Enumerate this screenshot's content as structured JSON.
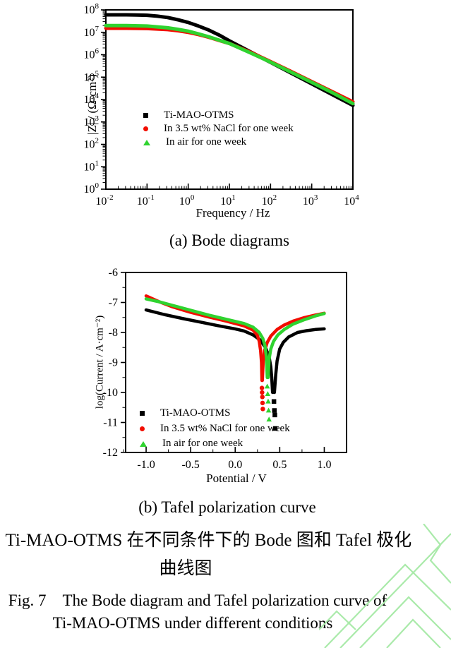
{
  "figure": {
    "caption_a": "(a) Bode diagrams",
    "caption_b": "(b) Tafel polarization curve",
    "caption_zh_line1": "图 7　Ti-MAO-OTMS 在不同条件下的 Bode 图和 Tafel 极化",
    "caption_zh_line2": "曲线图",
    "caption_en_line1": "Fig. 7　The Bode diagram and Tafel polarization curve of",
    "caption_en_line2": "Ti-MAO-OTMS under different conditions"
  },
  "legend": {
    "items": [
      {
        "label": "Ti-MAO-OTMS",
        "marker": "square",
        "color": "#000000"
      },
      {
        "label": "In 3.5 wt% NaCl for one week",
        "marker": "circle",
        "color": "#f20d00"
      },
      {
        "label": "In air for one week",
        "marker": "triangle",
        "color": "#2fd32f"
      }
    ]
  },
  "watermark": {
    "color": "#aaeaaa"
  },
  "chart_data": [
    {
      "type": "line",
      "name": "bode",
      "xlabel": "Frequency / Hz",
      "ylabel": "|Z| / (Ω·cm²)",
      "x_scale": "log",
      "y_scale": "log",
      "xlim_log": [
        -2,
        4
      ],
      "ylim_log": [
        0,
        8
      ],
      "x_ticks_exp": [
        -2,
        -1,
        0,
        1,
        2,
        3,
        4
      ],
      "y_ticks_exp": [
        0,
        1,
        2,
        3,
        4,
        5,
        6,
        7,
        8
      ],
      "series": [
        {
          "name": "Ti-MAO-OTMS",
          "color": "#000000",
          "marker": "square",
          "log_f": [
            -2,
            -1.75,
            -1.5,
            -1.25,
            -1,
            -0.75,
            -0.5,
            -0.25,
            0,
            0.25,
            0.5,
            0.75,
            1,
            1.5,
            2,
            2.5,
            3,
            3.5,
            4
          ],
          "log_z": [
            7.78,
            7.78,
            7.78,
            7.77,
            7.76,
            7.72,
            7.66,
            7.56,
            7.44,
            7.28,
            7.1,
            6.88,
            6.62,
            6.14,
            5.66,
            5.18,
            4.7,
            4.22,
            3.74
          ]
        },
        {
          "name": "In 3.5 wt% NaCl for one week",
          "color": "#f20d00",
          "marker": "circle",
          "log_f": [
            -2,
            -1.5,
            -1,
            -0.5,
            -0.25,
            0,
            0.25,
            0.5,
            0.75,
            1,
            1.5,
            2,
            2.5,
            3,
            3.5,
            4
          ],
          "log_z": [
            7.18,
            7.18,
            7.17,
            7.12,
            7.07,
            7.0,
            6.9,
            6.78,
            6.64,
            6.5,
            6.12,
            5.69,
            5.25,
            4.8,
            4.35,
            3.9
          ]
        },
        {
          "name": "In air for one week",
          "color": "#2fd32f",
          "marker": "triangle",
          "log_f": [
            -2,
            -1.5,
            -1,
            -0.5,
            -0.25,
            0,
            0.25,
            0.5,
            0.75,
            1,
            1.5,
            2,
            2.5,
            3,
            3.5,
            4
          ],
          "log_z": [
            7.3,
            7.3,
            7.28,
            7.2,
            7.13,
            7.05,
            6.93,
            6.8,
            6.65,
            6.5,
            6.09,
            5.67,
            5.22,
            4.77,
            4.31,
            3.82
          ]
        }
      ]
    },
    {
      "type": "line",
      "name": "tafel",
      "xlabel": "Potential / V",
      "ylabel": "log(Current / A·cm⁻²)",
      "xlim": [
        -1.23,
        1.25
      ],
      "ylim": [
        -12,
        -6
      ],
      "x_ticks": [
        -1.0,
        -0.5,
        0.0,
        0.5,
        1.0
      ],
      "y_ticks": [
        -6,
        -7,
        -8,
        -9,
        -10,
        -11,
        -12
      ],
      "series": [
        {
          "name": "Ti-MAO-OTMS",
          "color": "#000000",
          "marker": "square",
          "ecorr": 0.43,
          "branches": [
            {
              "x": [
                -1.0,
                -0.8,
                -0.6,
                -0.4,
                -0.2,
                0,
                0.1,
                0.2,
                0.28,
                0.34,
                0.38,
                0.4,
                0.41,
                0.42
              ],
              "y": [
                -7.25,
                -7.4,
                -7.53,
                -7.65,
                -7.77,
                -7.88,
                -7.95,
                -8.08,
                -8.25,
                -8.5,
                -8.8,
                -9.15,
                -9.5,
                -10.0
              ]
            },
            {
              "x": [
                0.44,
                0.455,
                0.47,
                0.5,
                0.54,
                0.6,
                0.7,
                0.8,
                0.9,
                1.0
              ],
              "y": [
                -10.0,
                -9.4,
                -8.95,
                -8.55,
                -8.33,
                -8.15,
                -8.0,
                -7.94,
                -7.9,
                -7.88
              ]
            }
          ],
          "scatter": {
            "x": [
              0.435,
              0.44,
              0.445,
              0.45
            ],
            "y": [
              -10.3,
              -10.6,
              -10.75,
              -11.2
            ]
          }
        },
        {
          "name": "In 3.5 wt% NaCl for one week",
          "color": "#f20d00",
          "marker": "circle",
          "ecorr": 0.3,
          "branches": [
            {
              "x": [
                -1.0,
                -0.85,
                -0.7,
                -0.5,
                -0.3,
                -0.1,
                0.1,
                0.2,
                0.25,
                0.27,
                0.285,
                0.295,
                0.3
              ],
              "y": [
                -6.78,
                -6.98,
                -7.15,
                -7.33,
                -7.48,
                -7.62,
                -7.78,
                -7.92,
                -8.1,
                -8.3,
                -8.6,
                -9.0,
                -9.6
              ]
            },
            {
              "x": [
                0.305,
                0.315,
                0.33,
                0.36,
                0.4,
                0.47,
                0.55,
                0.65,
                0.78,
                0.9,
                1.0
              ],
              "y": [
                -9.6,
                -8.95,
                -8.6,
                -8.33,
                -8.12,
                -7.9,
                -7.75,
                -7.62,
                -7.5,
                -7.42,
                -7.36
              ]
            }
          ],
          "scatter": {
            "x": [
              0.3,
              0.302,
              0.305,
              0.307,
              0.31
            ],
            "y": [
              -9.85,
              -10.0,
              -10.15,
              -10.35,
              -10.55
            ]
          }
        },
        {
          "name": "In air for one week",
          "color": "#2fd32f",
          "marker": "triangle",
          "ecorr": 0.36,
          "branches": [
            {
              "x": [
                -1.0,
                -0.85,
                -0.7,
                -0.5,
                -0.3,
                -0.1,
                0.1,
                0.2,
                0.27,
                0.31,
                0.335,
                0.35,
                0.36
              ],
              "y": [
                -6.88,
                -6.98,
                -7.1,
                -7.26,
                -7.42,
                -7.56,
                -7.7,
                -7.82,
                -8.0,
                -8.2,
                -8.45,
                -8.8,
                -9.5
              ]
            },
            {
              "x": [
                0.37,
                0.38,
                0.4,
                0.43,
                0.48,
                0.55,
                0.65,
                0.78,
                0.9,
                1.0
              ],
              "y": [
                -9.5,
                -8.9,
                -8.55,
                -8.3,
                -8.08,
                -7.9,
                -7.72,
                -7.57,
                -7.45,
                -7.37
              ]
            }
          ],
          "scatter": {
            "x": [
              0.36,
              0.365,
              0.37,
              0.375,
              0.38
            ],
            "y": [
              -9.8,
              -10.05,
              -10.3,
              -10.6,
              -10.9
            ]
          }
        }
      ]
    }
  ]
}
